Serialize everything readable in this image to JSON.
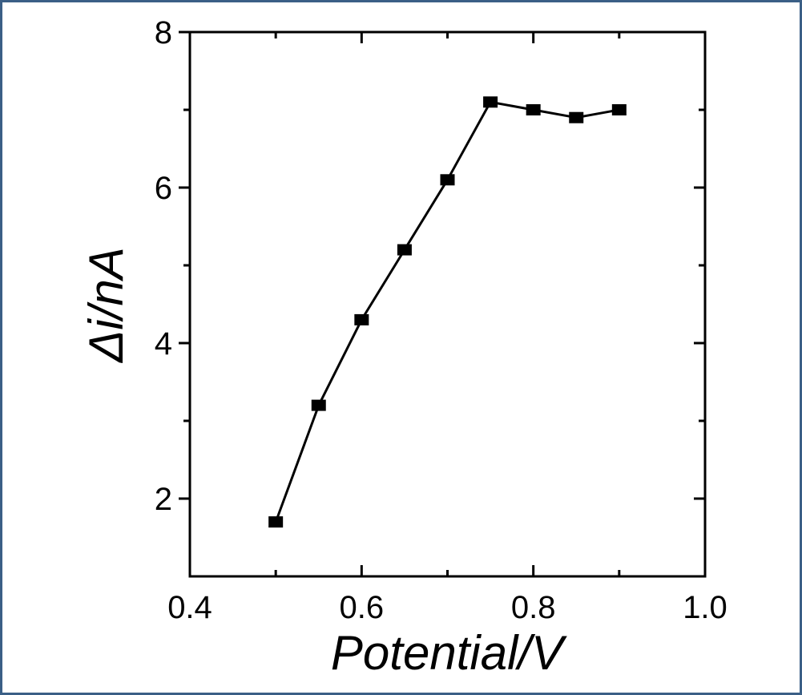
{
  "chart_data": {
    "type": "line",
    "title": "",
    "xlabel": "Potential/V",
    "ylabel": "Δi/nA",
    "xlim": [
      0.4,
      1.0
    ],
    "ylim": [
      1.0,
      8.0
    ],
    "x_ticks": [
      0.4,
      0.6,
      0.8,
      1.0
    ],
    "x_tick_labels": [
      "0.4",
      "0.6",
      "0.8",
      "1.0"
    ],
    "y_ticks": [
      2,
      4,
      6,
      8
    ],
    "y_tick_labels": [
      "2",
      "4",
      "6",
      "8"
    ],
    "grid": false,
    "legend": "none",
    "series": [
      {
        "x": [
          0.5,
          0.55,
          0.6,
          0.65,
          0.7,
          0.75,
          0.8,
          0.85,
          0.9
        ],
        "values": [
          1.7,
          3.2,
          4.3,
          5.2,
          6.1,
          7.1,
          7.0,
          6.9,
          7.0
        ],
        "color": "#000000",
        "marker": "square"
      }
    ]
  },
  "frame_color": "#3b5f86"
}
